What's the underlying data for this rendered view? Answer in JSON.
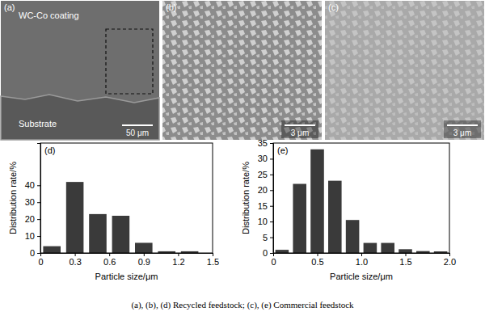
{
  "chart_data": [
    {
      "type": "histogram",
      "title": "(d)",
      "x_label": "Particle size/μm",
      "y_label": "Distribution rate/%",
      "bins": [
        0,
        0.2,
        0.4,
        0.6,
        0.8,
        1.0,
        1.2,
        1.4
      ],
      "counts": [
        4,
        42,
        23,
        22,
        6,
        1,
        1
      ],
      "color": "#3a3a3a",
      "xlim": [
        0,
        1.5
      ],
      "xticks": [
        0,
        0.3,
        0.6,
        0.9,
        1.2,
        1.5
      ],
      "ylim": [
        0,
        65
      ],
      "yticks": [
        0,
        10,
        20,
        30,
        40
      ]
    },
    {
      "type": "histogram",
      "title": "(e)",
      "x_label": "Particle size/μm",
      "y_label": "Distribution rate/%",
      "bins": [
        0,
        0.2,
        0.4,
        0.6,
        0.8,
        1.0,
        1.2,
        1.4,
        1.6,
        1.8,
        2.0
      ],
      "counts": [
        1,
        22,
        33,
        23,
        10.5,
        3.2,
        3.2,
        1.2,
        0.6,
        0.5
      ],
      "color": "#3a3a3a",
      "xlim": [
        0,
        2
      ],
      "xticks": [
        0,
        0.5,
        {
          "value": 1,
          "label": "1.0"
        },
        1.5,
        {
          "value": 2,
          "label": "2.0"
        }
      ],
      "ylim": [
        0,
        35
      ],
      "yticks": [
        0,
        5,
        10,
        15,
        20,
        25,
        30,
        35
      ]
    }
  ],
  "panels": [
    {
      "label": "(a)",
      "texts": [
        "WC-Co coating",
        "Substrate"
      ],
      "scale_bar": "50 μm"
    },
    {
      "label": "(b)",
      "scale_bar": "3 μm"
    },
    {
      "label": "(c)",
      "scale_bar": "3 μm"
    }
  ],
  "caption": "(a), (b), (d) Recycled feedstock; (c), (e) Commercial feedstock"
}
